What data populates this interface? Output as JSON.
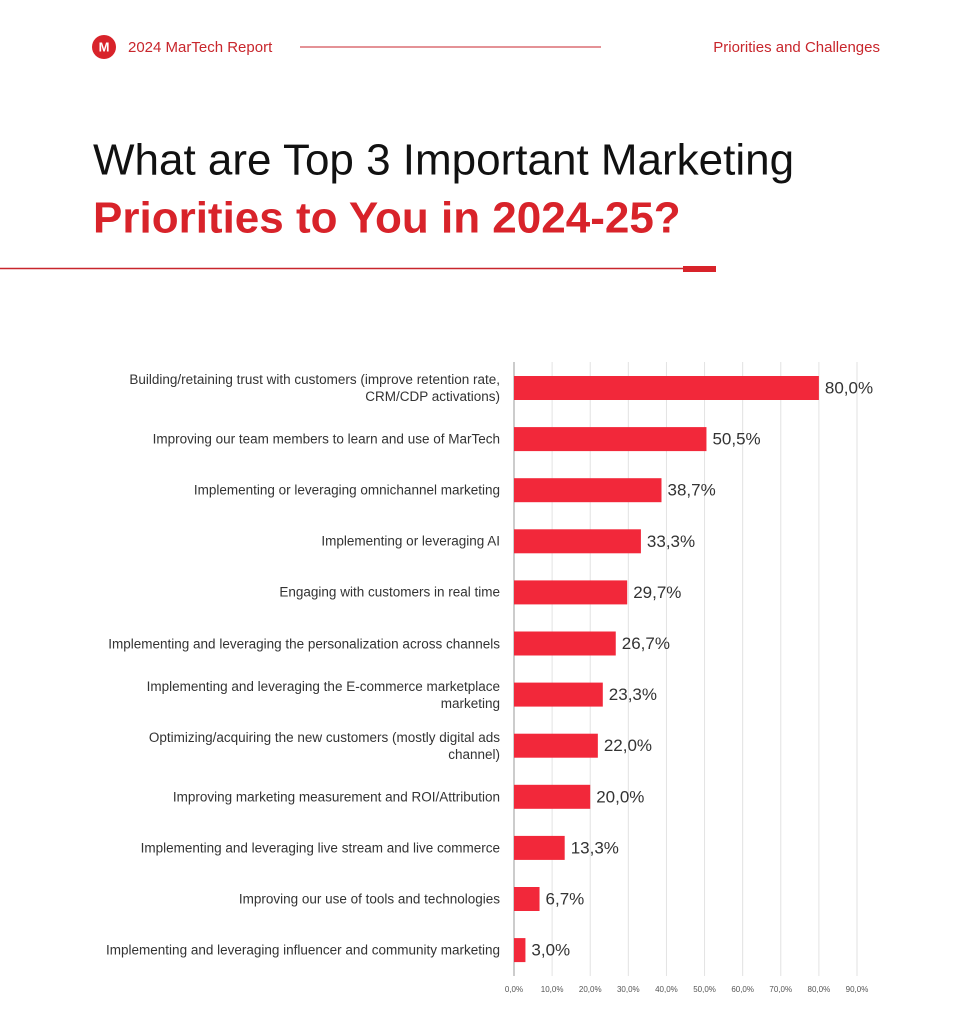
{
  "header": {
    "brand": "2024 MarTech Report",
    "section": "Priorities and Challenges"
  },
  "chart_data": {
    "type": "bar",
    "orientation": "horizontal",
    "title": "What are Top 3 Important Marketing",
    "subtitle": "Priorities to You in 2024-25?",
    "categories": [
      "Building/retaining trust with customers (improve retention rate, CRM/CDP activations)",
      "Improving our team members to learn and use of MarTech",
      "Implementing or leveraging omnichannel marketing",
      "Implementing or leveraging AI",
      "Engaging with customers in real time",
      "Implementing and leveraging the personalization across channels",
      "Implementing and leveraging the E-commerce marketplace marketing",
      "Optimizing/acquiring the new customers (mostly digital ads channel)",
      "Improving marketing measurement and ROI/Attribution",
      "Implementing and leveraging live stream and live commerce",
      "Improving our use of tools and technologies",
      "Implementing and leveraging influencer and community marketing"
    ],
    "values": [
      80,
      50.5,
      38.7,
      33.3,
      29.7,
      26.7,
      23.3,
      22,
      20,
      13.3,
      6.7,
      3
    ],
    "value_labels": [
      "80,0%",
      "50,5%",
      "38,7%",
      "33,3%",
      "29,7%",
      "26,7%",
      "23,3%",
      "22,0%",
      "20,0%",
      "13,3%",
      "6,7%",
      "3,0%"
    ],
    "color": "#f2283a",
    "xlim": [
      0,
      90
    ],
    "xticks": [
      {
        "value": 0,
        "label": "0,0%"
      },
      {
        "value": 10,
        "label": "10,0%"
      },
      {
        "value": 20,
        "label": "20,0%"
      },
      {
        "value": 30,
        "label": "30,0%"
      },
      {
        "value": 40,
        "label": "40,0%"
      },
      {
        "value": 50,
        "label": "50,0%"
      },
      {
        "value": 60,
        "label": "60,0%"
      },
      {
        "value": 70,
        "label": "70,0%"
      },
      {
        "value": 80,
        "label": "80,0%"
      },
      {
        "value": 90,
        "label": "90,0%"
      }
    ],
    "grid": true
  }
}
